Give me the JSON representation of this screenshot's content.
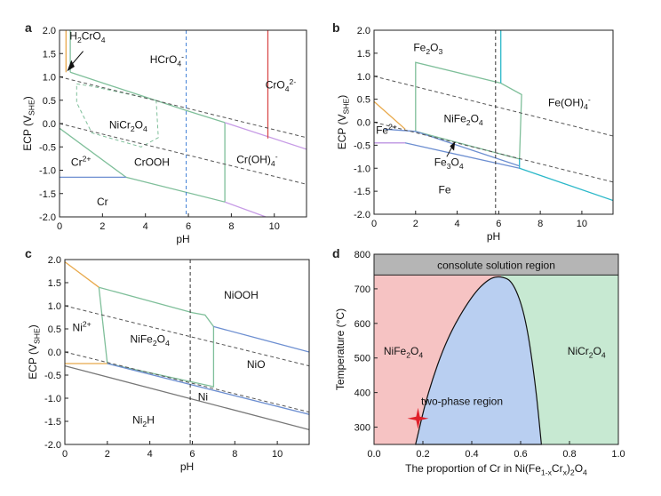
{
  "panel_labels": [
    "a",
    "b",
    "c",
    "d"
  ],
  "chart_data": [
    {
      "type": "line",
      "panel": "a",
      "xlabel": "pH",
      "ylabel": "ECP (VSHE)",
      "xlim": [
        0,
        11.5
      ],
      "ylim": [
        -2.0,
        2.0
      ],
      "xticks": [
        "0",
        "2",
        "4",
        "6",
        "8",
        "10"
      ],
      "yticks": [
        "2.0",
        "1.5",
        "1.0",
        "0.5",
        "0.0",
        "-0.5",
        "-1.0",
        "-1.5",
        "-2.0"
      ],
      "regions": [
        {
          "label": "H2CrO4",
          "x": 1.3,
          "y": 1.8
        },
        {
          "label": "HCrO4-",
          "x": 5.0,
          "y": 1.3
        },
        {
          "label": "CrO42-",
          "x": 10.3,
          "y": 0.75
        },
        {
          "label": "NiCr2O4",
          "x": 3.2,
          "y": -0.1
        },
        {
          "label": "Cr2+",
          "x": 1.0,
          "y": -0.9
        },
        {
          "label": "CrOOH",
          "x": 4.3,
          "y": -0.9
        },
        {
          "label": "Cr(OH)4-",
          "x": 9.2,
          "y": -0.85
        },
        {
          "label": "Cr",
          "x": 2.0,
          "y": -1.75
        }
      ],
      "series": [
        {
          "color": "#7fbf9a",
          "style": "solid",
          "points": [
            [
              0.5,
              1.1
            ],
            [
              5.9,
              0.28
            ],
            [
              7.7,
              0.02
            ]
          ]
        },
        {
          "color": "#7fbf9a",
          "style": "solid",
          "points": [
            [
              0.5,
              1.1
            ],
            [
              0.5,
              2.0
            ]
          ]
        },
        {
          "color": "#7fbf9a",
          "style": "solid",
          "points": [
            [
              0,
              -0.1
            ],
            [
              3.1,
              -1.15
            ]
          ]
        },
        {
          "color": "#7fbf9a",
          "style": "solid",
          "points": [
            [
              3.1,
              -1.15
            ],
            [
              7.7,
              -1.68
            ],
            [
              7.7,
              0.02
            ]
          ]
        },
        {
          "color": "#6d8fd1",
          "style": "solid",
          "points": [
            [
              0,
              -1.15
            ],
            [
              3.1,
              -1.15
            ]
          ]
        },
        {
          "color": "#c79be6",
          "style": "solid",
          "points": [
            [
              7.7,
              0.02
            ],
            [
              11.5,
              -0.55
            ]
          ]
        },
        {
          "color": "#c79be6",
          "style": "solid",
          "points": [
            [
              7.7,
              -1.68
            ],
            [
              9.6,
              -2.0
            ]
          ]
        },
        {
          "color": "#d94c4c",
          "style": "solid",
          "points": [
            [
              9.7,
              2.0
            ],
            [
              9.7,
              -0.32
            ]
          ]
        },
        {
          "color": "#e8a94b",
          "style": "solid",
          "points": [
            [
              0.3,
              2.0
            ],
            [
              0.3,
              1.1
            ]
          ]
        },
        {
          "color": "#7fbf9a",
          "style": "dashed",
          "points": [
            [
              0.8,
              0.85
            ],
            [
              1.5,
              0.8
            ],
            [
              4.5,
              0.5
            ],
            [
              4.6,
              -0.3
            ],
            [
              3.8,
              -0.5
            ],
            [
              1.5,
              -0.2
            ],
            [
              0.8,
              0.45
            ],
            [
              0.8,
              0.85
            ]
          ]
        },
        {
          "color": "#555555",
          "style": "dashed",
          "points": [
            [
              0,
              1.0
            ],
            [
              11.5,
              -0.3
            ]
          ]
        },
        {
          "color": "#555555",
          "style": "dashed",
          "points": [
            [
              0,
              0.0
            ],
            [
              11.5,
              -1.3
            ]
          ]
        },
        {
          "color": "#3a7bd5",
          "style": "dashed",
          "points": [
            [
              5.9,
              2.0
            ],
            [
              5.9,
              -2.0
            ]
          ]
        }
      ]
    },
    {
      "type": "line",
      "panel": "b",
      "xlabel": "pH",
      "ylabel": "ECP (VSHE)",
      "xlim": [
        0,
        11.5
      ],
      "ylim": [
        -2.0,
        2.0
      ],
      "xticks": [
        "0",
        "2",
        "4",
        "6",
        "8",
        "10"
      ],
      "yticks": [
        "2.0",
        "1.5",
        "1.0",
        "0.5",
        "0.0",
        "-0.5",
        "-1.0",
        "-1.5",
        "-2.0"
      ],
      "regions": [
        {
          "label": "Fe2O3",
          "x": 2.6,
          "y": 1.55
        },
        {
          "label": "NiFe2O4",
          "x": 4.3,
          "y": 0.0
        },
        {
          "label": "Fe(OH)4-",
          "x": 9.4,
          "y": 0.35
        },
        {
          "label": "Fe2+",
          "x": 0.6,
          "y": -0.25
        },
        {
          "label": "Fe3O4",
          "x": 3.6,
          "y": -0.95
        },
        {
          "label": "Fe",
          "x": 3.4,
          "y": -1.55
        }
      ],
      "series": [
        {
          "color": "#7fbf9a",
          "style": "solid",
          "points": [
            [
              2.0,
              -0.2
            ],
            [
              2.0,
              1.3
            ],
            [
              6.1,
              0.85
            ],
            [
              7.1,
              0.6
            ],
            [
              7.0,
              -0.8
            ],
            [
              2.0,
              -0.2
            ]
          ]
        },
        {
          "color": "#2bb8c9",
          "style": "solid",
          "points": [
            [
              6.1,
              2.0
            ],
            [
              6.1,
              0.85
            ]
          ]
        },
        {
          "color": "#2bb8c9",
          "style": "solid",
          "points": [
            [
              7.0,
              -0.8
            ],
            [
              7.0,
              -1.0
            ],
            [
              11.5,
              -1.7
            ]
          ]
        },
        {
          "color": "#6d8fd1",
          "style": "solid",
          "points": [
            [
              0.5,
              -0.15
            ],
            [
              2.0,
              -0.2
            ],
            [
              7.0,
              -0.95
            ]
          ]
        },
        {
          "color": "#6d8fd1",
          "style": "solid",
          "points": [
            [
              0,
              -0.45
            ],
            [
              1.5,
              -0.45
            ],
            [
              7.0,
              -1.0
            ]
          ]
        },
        {
          "color": "#c79be6",
          "style": "solid",
          "points": [
            [
              0,
              -0.45
            ],
            [
              1.5,
              -0.45
            ]
          ]
        },
        {
          "color": "#e8a94b",
          "style": "solid",
          "points": [
            [
              0,
              0.45
            ],
            [
              1.5,
              -0.15
            ]
          ]
        },
        {
          "color": "#555555",
          "style": "dashed",
          "points": [
            [
              0,
              1.0
            ],
            [
              11.5,
              -0.3
            ]
          ]
        },
        {
          "color": "#555555",
          "style": "dashed",
          "points": [
            [
              0,
              0.0
            ],
            [
              11.5,
              -1.3
            ]
          ]
        },
        {
          "color": "#333333",
          "style": "dashed",
          "points": [
            [
              5.85,
              2.0
            ],
            [
              5.85,
              -2.0
            ]
          ]
        }
      ]
    },
    {
      "type": "line",
      "panel": "c",
      "xlabel": "pH",
      "ylabel": "ECP (VSHE)",
      "xlim": [
        0,
        11.5
      ],
      "ylim": [
        -2.0,
        2.0
      ],
      "xticks": [
        "0",
        "2",
        "4",
        "6",
        "8",
        "10"
      ],
      "yticks": [
        "2.0",
        "1.5",
        "1.0",
        "0.5",
        "0.0",
        "-0.5",
        "-1.0",
        "-1.5",
        "-2.0"
      ],
      "regions": [
        {
          "label": "NiOOH",
          "x": 8.3,
          "y": 1.15
        },
        {
          "label": "Ni2+",
          "x": 0.8,
          "y": 0.45
        },
        {
          "label": "NiFe2O4",
          "x": 4.0,
          "y": 0.2
        },
        {
          "label": "NiO",
          "x": 9.0,
          "y": -0.35
        },
        {
          "label": "Ni",
          "x": 6.5,
          "y": -1.05
        },
        {
          "label": "Ni2H",
          "x": 3.7,
          "y": -1.55
        }
      ],
      "series": [
        {
          "color": "#7fbf9a",
          "style": "solid",
          "points": [
            [
              1.6,
              1.4
            ],
            [
              6.0,
              0.85
            ],
            [
              6.6,
              0.8
            ],
            [
              7.0,
              0.55
            ],
            [
              7.0,
              -0.75
            ],
            [
              2.0,
              -0.25
            ],
            [
              1.6,
              1.4
            ]
          ]
        },
        {
          "color": "#e8a94b",
          "style": "solid",
          "points": [
            [
              0,
              1.95
            ],
            [
              1.6,
              1.4
            ]
          ]
        },
        {
          "color": "#e8a94b",
          "style": "solid",
          "points": [
            [
              0,
              -0.25
            ],
            [
              2.0,
              -0.25
            ]
          ]
        },
        {
          "color": "#6d8fd1",
          "style": "solid",
          "points": [
            [
              7.0,
              0.55
            ],
            [
              11.5,
              0.0
            ]
          ]
        },
        {
          "color": "#6d8fd1",
          "style": "solid",
          "points": [
            [
              2.0,
              -0.25
            ],
            [
              11.5,
              -1.35
            ]
          ]
        },
        {
          "color": "#777777",
          "style": "solid",
          "points": [
            [
              0,
              -0.3
            ],
            [
              11.5,
              -1.68
            ]
          ]
        },
        {
          "color": "#555555",
          "style": "dashed",
          "points": [
            [
              0,
              1.0
            ],
            [
              11.5,
              -0.3
            ]
          ]
        },
        {
          "color": "#555555",
          "style": "dashed",
          "points": [
            [
              0,
              0.0
            ],
            [
              11.5,
              -1.3
            ]
          ]
        },
        {
          "color": "#333333",
          "style": "dashed",
          "points": [
            [
              5.9,
              2.0
            ],
            [
              5.9,
              -2.0
            ]
          ]
        }
      ]
    },
    {
      "type": "area",
      "panel": "d",
      "xlabel": "The proportion of Cr in Ni(Fe1-xCrx)2O4",
      "ylabel": "Temperature (°C)",
      "xlim": [
        0.0,
        1.0
      ],
      "ylim": [
        250,
        800
      ],
      "xticks": [
        "0.0",
        "0.2",
        "0.4",
        "0.6",
        "0.8",
        "1.0"
      ],
      "yticks": [
        "800",
        "700",
        "600",
        "500",
        "400",
        "300"
      ],
      "top_band": {
        "label": "consolute solution region",
        "from": 740,
        "to": 800,
        "color": "#b5b5b5"
      },
      "left_region": {
        "label": "NiFe2O4",
        "color": "#f6c3c3",
        "label_x": 0.12,
        "label_y": 510
      },
      "right_region": {
        "label": "NiCr2O4",
        "color": "#c7e9d2",
        "label_x": 0.87,
        "label_y": 510
      },
      "dome": {
        "label": "two-phase region",
        "color": "#b9cff1",
        "label_x": 0.36,
        "label_y": 365,
        "x": [
          0.17,
          0.22,
          0.3,
          0.4,
          0.47,
          0.52,
          0.57,
          0.62,
          0.66,
          0.685
        ],
        "y": [
          250,
          400,
          560,
          680,
          730,
          737,
          720,
          620,
          430,
          250
        ]
      },
      "marker": {
        "x": 0.18,
        "y": 325,
        "color": "#e0202a"
      }
    }
  ]
}
